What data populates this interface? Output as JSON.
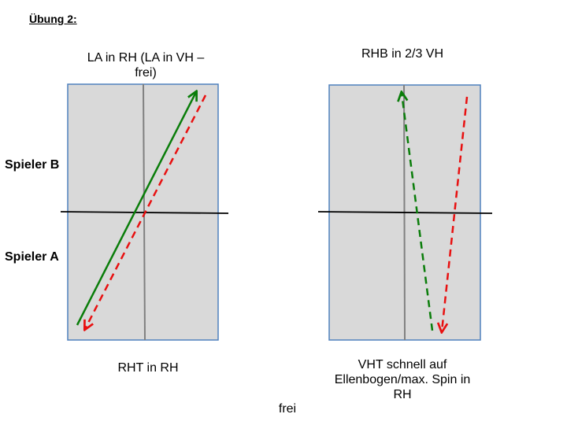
{
  "title": "Übung 2:",
  "players": {
    "top": "Spieler B",
    "bottom": "Spieler A"
  },
  "left_table": {
    "top_caption": "LA in RH (LA in VH – frei)",
    "bottom_caption": "RHT in RH"
  },
  "right_table": {
    "top_caption": "RHB in 2/3 VH",
    "bottom_caption": "VHT schnell auf Ellenbogen/max. Spin in RH"
  },
  "footer": "frei",
  "colors": {
    "table_fill": "#d9d9d9",
    "table_border": "#4f81bd",
    "center_line": "#808080",
    "net": "#000000",
    "green_arrow": "#0a7d0a",
    "red_arrow": "#e81010"
  }
}
